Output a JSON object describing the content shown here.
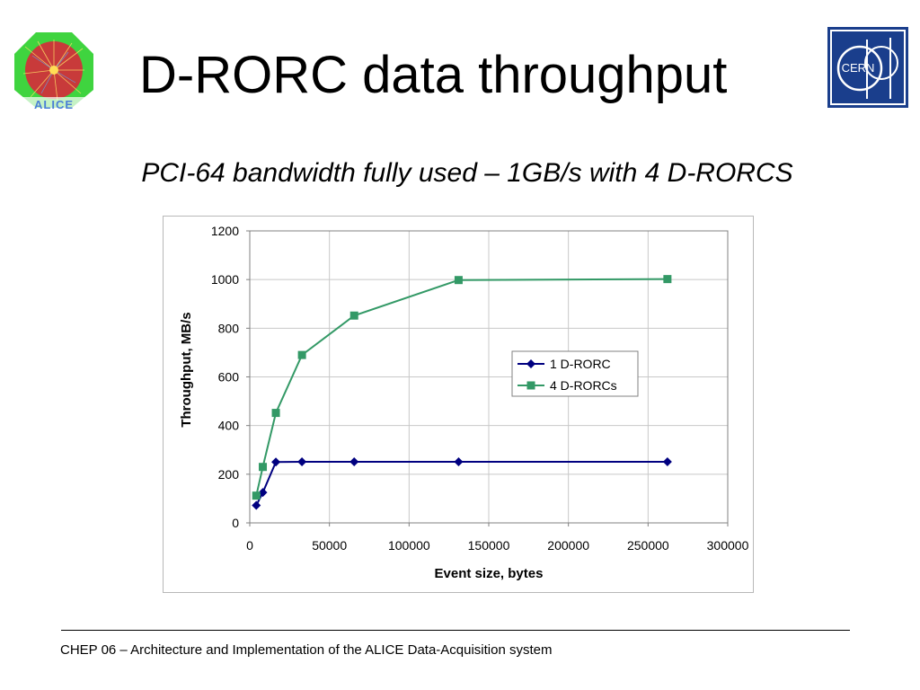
{
  "slide": {
    "title": "D-RORC data throughput",
    "subtitle": "PCI-64 bandwidth fully used – 1GB/s with 4 D-RORCS",
    "footer": "CHEP 06 – Architecture and Implementation of the ALICE Data-Acquisition system"
  },
  "logos": {
    "left": {
      "icon": "alice-logo-icon",
      "text": "ALICE"
    },
    "right": {
      "icon": "cern-logo-icon",
      "text": "CERN"
    }
  },
  "colors": {
    "series1": "#000080",
    "series2": "#339966",
    "cern_blue": "#1a3e8c",
    "gridline": "#c8c8c8"
  },
  "chart_data": {
    "type": "line",
    "title": "",
    "xlabel": "Event size, bytes",
    "ylabel": "Throughput, MB/s",
    "xlim": [
      0,
      300000
    ],
    "ylim": [
      0,
      1200
    ],
    "xticks": [
      0,
      50000,
      100000,
      150000,
      200000,
      250000,
      300000
    ],
    "yticks": [
      0,
      200,
      400,
      600,
      800,
      1000,
      1200
    ],
    "grid": true,
    "legend_position": "right-center",
    "series": [
      {
        "name": "1 D-RORC",
        "marker": "diamond",
        "x": [
          4096,
          8192,
          16384,
          32768,
          65536,
          131072,
          262144
        ],
        "y": [
          72,
          125,
          250,
          251,
          251,
          251,
          251
        ]
      },
      {
        "name": "4 D-RORCs",
        "marker": "square",
        "x": [
          4096,
          8192,
          16384,
          32768,
          65536,
          131072,
          262144
        ],
        "y": [
          112,
          230,
          452,
          690,
          852,
          998,
          1002
        ]
      }
    ]
  }
}
